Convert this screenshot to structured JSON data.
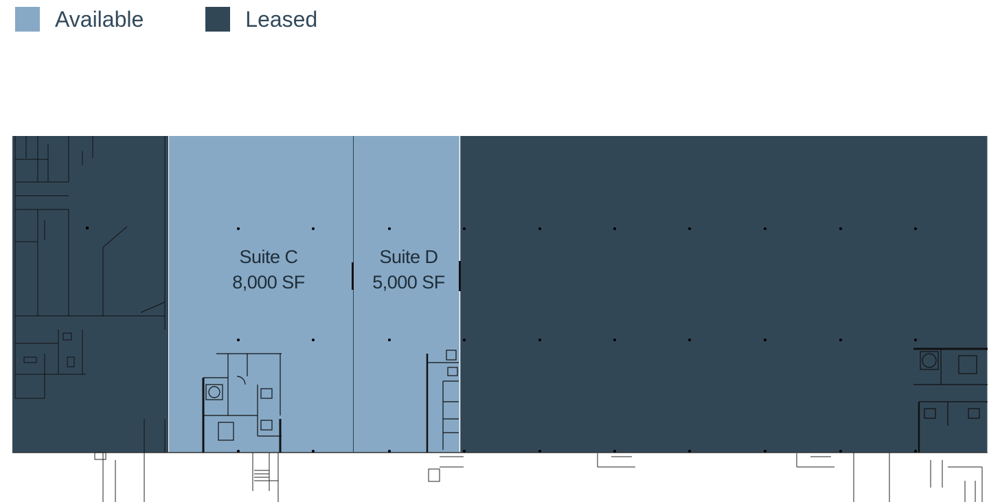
{
  "legend": {
    "items": [
      {
        "label": "Available",
        "color": "#87a9c6"
      },
      {
        "label": "Leased",
        "color": "#324756"
      }
    ]
  },
  "suites": [
    {
      "name": "Suite C",
      "area": "8,000 SF",
      "status": "Available"
    },
    {
      "name": "Suite D",
      "area": "5,000 SF",
      "status": "Available"
    }
  ],
  "colors": {
    "available": "#87a9c6",
    "leased": "#324756",
    "linework": "#111111"
  }
}
